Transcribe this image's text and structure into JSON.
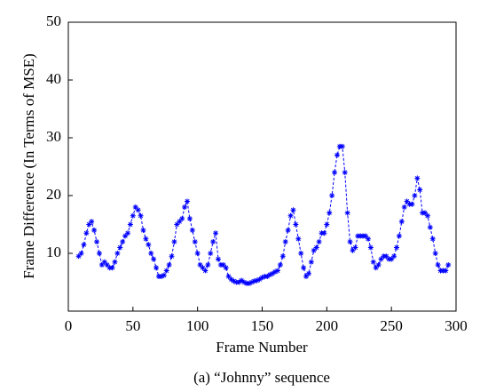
{
  "chart_data": {
    "type": "line",
    "x_label": "Frame Number",
    "y_label": "Frame Difference (In Terms of MSE)",
    "caption": "(a)  “Johnny” sequence",
    "xlim": [
      0,
      300
    ],
    "ylim": [
      0,
      50
    ],
    "xticks": [
      0,
      50,
      100,
      150,
      200,
      250,
      300
    ],
    "yticks": [
      10,
      20,
      30,
      40,
      50
    ],
    "series": [
      {
        "color": "#0000ff",
        "x": [
          8,
          10,
          12,
          14,
          16,
          18,
          20,
          22,
          24,
          26,
          28,
          30,
          32,
          34,
          36,
          38,
          40,
          42,
          44,
          46,
          48,
          50,
          52,
          54,
          56,
          58,
          60,
          62,
          64,
          66,
          68,
          70,
          72,
          74,
          76,
          78,
          80,
          82,
          84,
          86,
          88,
          90,
          92,
          94,
          96,
          98,
          100,
          102,
          104,
          106,
          108,
          110,
          112,
          114,
          116,
          118,
          120,
          122,
          124,
          126,
          128,
          130,
          132,
          134,
          136,
          138,
          140,
          142,
          144,
          146,
          148,
          150,
          152,
          154,
          156,
          158,
          160,
          162,
          164,
          166,
          168,
          170,
          172,
          174,
          176,
          178,
          180,
          182,
          184,
          186,
          188,
          190,
          192,
          194,
          196,
          198,
          200,
          202,
          204,
          206,
          208,
          210,
          212,
          214,
          216,
          218,
          220,
          222,
          224,
          226,
          228,
          230,
          232,
          234,
          236,
          238,
          240,
          242,
          244,
          246,
          248,
          250,
          252,
          254,
          256,
          258,
          260,
          262,
          264,
          266,
          268,
          270,
          272,
          274,
          276,
          278,
          280,
          282,
          284,
          286,
          288,
          290,
          292,
          294
        ],
        "values": [
          9.5,
          10,
          11.5,
          13.5,
          15,
          15.5,
          14,
          12,
          10,
          8,
          8.5,
          8,
          7.5,
          7.5,
          8.5,
          10,
          11,
          12,
          13,
          13.5,
          15,
          16.5,
          18,
          17.5,
          16.5,
          14,
          12.5,
          11.5,
          10,
          9,
          7.5,
          6,
          6,
          6.2,
          7,
          8,
          9.5,
          12,
          15,
          15.5,
          16,
          18,
          19,
          16,
          14,
          12,
          10,
          8,
          7.5,
          7,
          8,
          10,
          12,
          13.5,
          9,
          8,
          8,
          7.5,
          6,
          5.5,
          5.2,
          5,
          5,
          5.3,
          5,
          4.8,
          4.8,
          5,
          5.2,
          5.3,
          5.5,
          5.8,
          6,
          6,
          6.3,
          6.5,
          6.8,
          7,
          8,
          9.5,
          12,
          14,
          16.5,
          17.5,
          15,
          12.5,
          10,
          7.5,
          6,
          6.5,
          8.5,
          10.5,
          11,
          12,
          13.5,
          13.5,
          15,
          17,
          20,
          24,
          27,
          28.5,
          28.5,
          24,
          17,
          12,
          10.5,
          11,
          13,
          13,
          13,
          13,
          12.5,
          11,
          8.5,
          7.5,
          8,
          9,
          9.5,
          9.5,
          9,
          9,
          9.5,
          11,
          13,
          15.5,
          18,
          19,
          18.5,
          18.5,
          20,
          23,
          21,
          17,
          17,
          16.5,
          14.5,
          12.5,
          10,
          8,
          7,
          7,
          7,
          8
        ]
      }
    ]
  }
}
